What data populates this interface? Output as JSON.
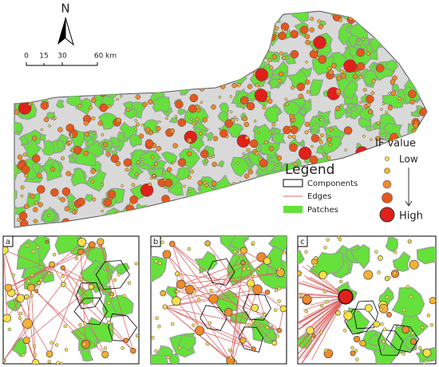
{
  "north_arrow": {
    "label": "N"
  },
  "scale_bar": {
    "labels": [
      "0",
      "15",
      "30",
      "60 km"
    ]
  },
  "legend": {
    "title": "Legend",
    "items": [
      "Components",
      "Edges",
      "Patches"
    ]
  },
  "if_value": {
    "title": "IF value",
    "low": "Low",
    "high": "High"
  },
  "panels": [
    "a",
    "b",
    "c"
  ]
}
